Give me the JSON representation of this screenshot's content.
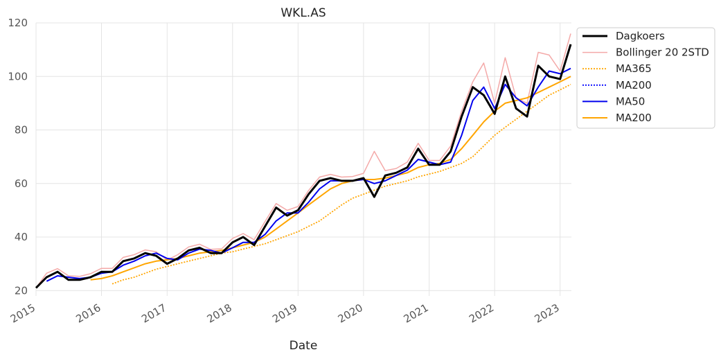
{
  "chart_data": {
    "type": "line",
    "title": "WKL.AS",
    "xlabel": "Date",
    "ylabel": "",
    "x_range": [
      "2015-01-01",
      "2023-03-05"
    ],
    "ylim": [
      18,
      120
    ],
    "y_ticks": [
      20,
      40,
      60,
      80,
      100,
      120
    ],
    "x_ticks": [
      {
        "date": "2015-01-01",
        "label": "2015"
      },
      {
        "date": "2016-01-01",
        "label": "2016"
      },
      {
        "date": "2017-01-01",
        "label": "2017"
      },
      {
        "date": "2018-01-01",
        "label": "2018"
      },
      {
        "date": "2019-01-01",
        "label": "2019"
      },
      {
        "date": "2020-01-01",
        "label": "2020"
      },
      {
        "date": "2021-01-01",
        "label": "2021"
      },
      {
        "date": "2022-01-01",
        "label": "2022"
      },
      {
        "date": "2023-01-01",
        "label": "2023"
      }
    ],
    "grid": true,
    "legend_position": "top-right outside",
    "x": [
      "2015-01-01",
      "2015-03-01",
      "2015-05-01",
      "2015-07-01",
      "2015-09-01",
      "2015-11-01",
      "2016-01-01",
      "2016-03-01",
      "2016-05-01",
      "2016-07-01",
      "2016-09-01",
      "2016-11-01",
      "2017-01-01",
      "2017-03-01",
      "2017-05-01",
      "2017-07-01",
      "2017-09-01",
      "2017-11-01",
      "2018-01-01",
      "2018-03-01",
      "2018-05-01",
      "2018-07-01",
      "2018-09-01",
      "2018-11-01",
      "2019-01-01",
      "2019-03-01",
      "2019-05-01",
      "2019-07-01",
      "2019-09-01",
      "2019-11-01",
      "2020-01-01",
      "2020-03-01",
      "2020-05-01",
      "2020-07-01",
      "2020-09-01",
      "2020-11-01",
      "2021-01-01",
      "2021-03-01",
      "2021-05-01",
      "2021-07-01",
      "2021-09-01",
      "2021-11-01",
      "2022-01-01",
      "2022-03-01",
      "2022-05-01",
      "2022-07-01",
      "2022-09-01",
      "2022-11-01",
      "2023-01-01",
      "2023-03-01"
    ],
    "series": [
      {
        "name": "Dagkoers",
        "color": "#000000",
        "style": "solid",
        "width": 3,
        "values": [
          21,
          25,
          27,
          24,
          24,
          25,
          27,
          27,
          31,
          32,
          34,
          33,
          30,
          32,
          35,
          36,
          34,
          34,
          38,
          40,
          37,
          44,
          51,
          48,
          50,
          56,
          61,
          62,
          61,
          61,
          62,
          55,
          63,
          64,
          66,
          73,
          67,
          67,
          72,
          85,
          96,
          93,
          86,
          100,
          88,
          85,
          104,
          100,
          99,
          112
        ]
      },
      {
        "name": "Bollinger 20 2STD",
        "color": "#f4a9a8",
        "style": "solid",
        "width": 1.5,
        "values": [
          21,
          26.5,
          28.2,
          25.5,
          25.3,
          26.3,
          28.3,
          28.3,
          32.4,
          33.4,
          35.2,
          34.5,
          31.4,
          33.4,
          36.3,
          37.3,
          35.4,
          35.6,
          39.5,
          41.3,
          39,
          45.8,
          52.5,
          50,
          51.4,
          57.4,
          62.4,
          63.4,
          62.4,
          62.6,
          63.8,
          72,
          64.8,
          65.6,
          68,
          75,
          68.6,
          68.6,
          74,
          87,
          98,
          105,
          90,
          107,
          92,
          90,
          109,
          108,
          102,
          116
        ]
      },
      {
        "name": "MA365",
        "color": "#ffa500",
        "style": "dotted",
        "width": 1.8,
        "values": [
          null,
          null,
          null,
          null,
          null,
          null,
          null,
          22.5,
          24,
          25,
          26.5,
          28,
          29,
          30,
          31,
          32,
          33,
          34,
          34.5,
          35.5,
          36.5,
          37.5,
          39,
          40.5,
          42,
          44,
          46,
          49,
          52,
          54.5,
          56,
          57.5,
          59,
          60,
          61,
          62.5,
          63.5,
          64.5,
          66,
          67.5,
          70,
          74,
          78,
          81,
          84,
          87,
          90,
          93,
          95,
          97
        ]
      },
      {
        "name": "MA200",
        "color": "#0000ff",
        "style": "dotted",
        "width": 1.8,
        "values": [
          null,
          null,
          null,
          null,
          null,
          null,
          null,
          null,
          null,
          null,
          null,
          null,
          null,
          null,
          null,
          null,
          null,
          null,
          null,
          null,
          null,
          null,
          null,
          null,
          null,
          null,
          null,
          null,
          null,
          null,
          null,
          null,
          null,
          null,
          null,
          null,
          null,
          null,
          null,
          null,
          null,
          null,
          null,
          null,
          null,
          null,
          null,
          null,
          null,
          null
        ]
      },
      {
        "name": "MA50",
        "color": "#0000ee",
        "style": "solid",
        "width": 2,
        "values": [
          null,
          23.5,
          25.5,
          25,
          24.5,
          25,
          26.5,
          27,
          29.5,
          31,
          33,
          34,
          32,
          31.5,
          34,
          35.5,
          35,
          34,
          36,
          38,
          38,
          41,
          46,
          49,
          49,
          53,
          58,
          61,
          61,
          61,
          61.5,
          60,
          61,
          63,
          65,
          69,
          68,
          67,
          68,
          78,
          91,
          96,
          88,
          97,
          92,
          89,
          96,
          102,
          101,
          103
        ]
      },
      {
        "name": "MA200",
        "color": "#ffa500",
        "style": "solid",
        "width": 2,
        "values": [
          null,
          null,
          null,
          null,
          null,
          24,
          24.5,
          25.5,
          27,
          28.5,
          30,
          31,
          31.5,
          32,
          33,
          34,
          34.5,
          35,
          36,
          37,
          38,
          40,
          43,
          46,
          49,
          52,
          55,
          58,
          60,
          61,
          61.5,
          61.5,
          62,
          63,
          64,
          66,
          67,
          67.5,
          69,
          73,
          78,
          83,
          87,
          90,
          91,
          92,
          94,
          96,
          98,
          100
        ]
      }
    ]
  }
}
